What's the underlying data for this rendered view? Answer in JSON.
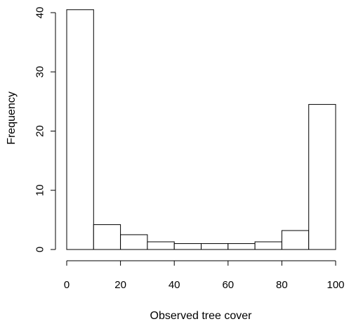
{
  "chart_data": {
    "type": "bar",
    "subtype": "histogram",
    "bins": [
      {
        "start": 0,
        "end": 10,
        "value": 40.5
      },
      {
        "start": 10,
        "end": 20,
        "value": 4.2
      },
      {
        "start": 20,
        "end": 30,
        "value": 2.5
      },
      {
        "start": 30,
        "end": 40,
        "value": 1.3
      },
      {
        "start": 40,
        "end": 50,
        "value": 1.0
      },
      {
        "start": 50,
        "end": 60,
        "value": 1.0
      },
      {
        "start": 60,
        "end": 70,
        "value": 1.0
      },
      {
        "start": 70,
        "end": 80,
        "value": 1.3
      },
      {
        "start": 80,
        "end": 90,
        "value": 3.2
      },
      {
        "start": 90,
        "end": 100,
        "value": 24.5
      }
    ],
    "title": "",
    "xlabel": "Observed tree cover",
    "ylabel": "Frequency",
    "xlim": [
      0,
      100
    ],
    "ylim": [
      0,
      40
    ],
    "xticks": [
      0,
      20,
      40,
      60,
      80,
      100
    ],
    "yticks": [
      0,
      10,
      20,
      30,
      40
    ],
    "grid": false,
    "colors": {
      "bar_fill": "#ffffff",
      "bar_stroke": "#000000",
      "axis": "#000000"
    }
  }
}
